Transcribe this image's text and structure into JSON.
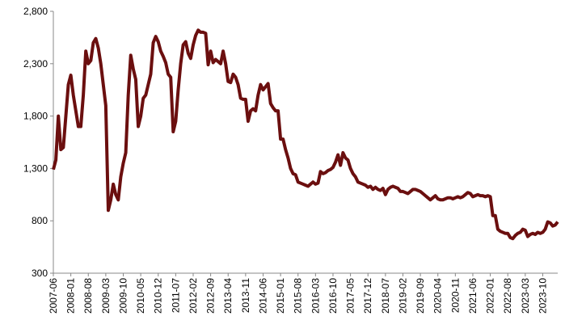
{
  "chart_data": {
    "type": "line",
    "categories": [
      "2007-06",
      null,
      null,
      null,
      null,
      null,
      null,
      "2008-01",
      null,
      null,
      null,
      null,
      null,
      null,
      "2008-08",
      null,
      null,
      null,
      null,
      null,
      null,
      "2009-03",
      null,
      null,
      null,
      null,
      null,
      null,
      "2009-10",
      null,
      null,
      null,
      null,
      null,
      null,
      "2010-05",
      null,
      null,
      null,
      null,
      null,
      null,
      "2010-12",
      null,
      null,
      null,
      null,
      null,
      null,
      "2011-07",
      null,
      null,
      null,
      null,
      null,
      null,
      "2012-02",
      null,
      null,
      null,
      null,
      null,
      null,
      "2012-09",
      null,
      null,
      null,
      null,
      null,
      null,
      "2013-04",
      null,
      null,
      null,
      null,
      null,
      null,
      "2013-11",
      null,
      null,
      null,
      null,
      null,
      null,
      "2014-06",
      null,
      null,
      null,
      null,
      null,
      null,
      "2015-01",
      null,
      null,
      null,
      null,
      null,
      null,
      "2015-08",
      null,
      null,
      null,
      null,
      null,
      null,
      "2016-03",
      null,
      null,
      null,
      null,
      null,
      null,
      "2016-10",
      null,
      null,
      null,
      null,
      null,
      null,
      "2017-05",
      null,
      null,
      null,
      null,
      null,
      null,
      "2017-12",
      null,
      null,
      null,
      null,
      null,
      null,
      "2018-07",
      null,
      null,
      null,
      null,
      null,
      null,
      "2019-02",
      null,
      null,
      null,
      null,
      null,
      null,
      "2019-09",
      null,
      null,
      null,
      null,
      null,
      null,
      "2020-04",
      null,
      null,
      null,
      null,
      null,
      null,
      "2020-11",
      null,
      null,
      null,
      null,
      null,
      null,
      "2021-06",
      null,
      null,
      null,
      null,
      null,
      null,
      "2022-01",
      null,
      null,
      null,
      null,
      null,
      null,
      "2022-08",
      null,
      null,
      null,
      null,
      null,
      null,
      "2023-03",
      null,
      null,
      null,
      null,
      null,
      null,
      "2023-10",
      null,
      null,
      null,
      null,
      null,
      null
    ],
    "values": [
      1290,
      1380,
      1800,
      1480,
      1500,
      1800,
      2100,
      2190,
      2000,
      1850,
      1700,
      1700,
      2000,
      2420,
      2300,
      2330,
      2500,
      2540,
      2450,
      2300,
      2100,
      1900,
      900,
      1000,
      1150,
      1050,
      1000,
      1220,
      1350,
      1450,
      2000,
      2380,
      2250,
      2150,
      1700,
      1800,
      1970,
      2000,
      2100,
      2200,
      2500,
      2560,
      2510,
      2420,
      2370,
      2310,
      2200,
      2170,
      1650,
      1750,
      2050,
      2300,
      2480,
      2510,
      2400,
      2350,
      2480,
      2570,
      2620,
      2600,
      2600,
      2590,
      2290,
      2420,
      2310,
      2340,
      2320,
      2300,
      2420,
      2300,
      2130,
      2120,
      2200,
      2170,
      2100,
      1970,
      1960,
      1960,
      1750,
      1850,
      1870,
      1850,
      2000,
      2100,
      2050,
      2080,
      2110,
      1920,
      1880,
      1850,
      1850,
      1580,
      1580,
      1480,
      1400,
      1300,
      1250,
      1240,
      1170,
      1160,
      1150,
      1140,
      1130,
      1150,
      1170,
      1150,
      1160,
      1270,
      1250,
      1260,
      1280,
      1290,
      1310,
      1360,
      1430,
      1330,
      1450,
      1400,
      1380,
      1300,
      1250,
      1220,
      1170,
      1160,
      1150,
      1140,
      1120,
      1130,
      1100,
      1120,
      1100,
      1090,
      1110,
      1050,
      1100,
      1120,
      1130,
      1120,
      1110,
      1080,
      1080,
      1070,
      1060,
      1080,
      1100,
      1100,
      1090,
      1080,
      1060,
      1040,
      1020,
      1000,
      1020,
      1040,
      1010,
      1000,
      1000,
      1010,
      1020,
      1020,
      1010,
      1020,
      1030,
      1020,
      1030,
      1050,
      1070,
      1060,
      1030,
      1040,
      1050,
      1040,
      1040,
      1030,
      1040,
      1030,
      850,
      850,
      720,
      700,
      690,
      680,
      680,
      640,
      630,
      660,
      680,
      690,
      720,
      710,
      650,
      670,
      680,
      670,
      690,
      680,
      690,
      720,
      790,
      780,
      750,
      760,
      790
    ],
    "color": "#6b0f0f",
    "ylim": [
      300,
      2800
    ],
    "yticks": [
      300,
      800,
      {
        "value": 1300,
        "label": "1,300"
      },
      {
        "value": 1800,
        "label": "1,800"
      },
      {
        "value": 2300,
        "label": "2,300"
      },
      {
        "value": 2800,
        "label": "2,800"
      }
    ]
  }
}
